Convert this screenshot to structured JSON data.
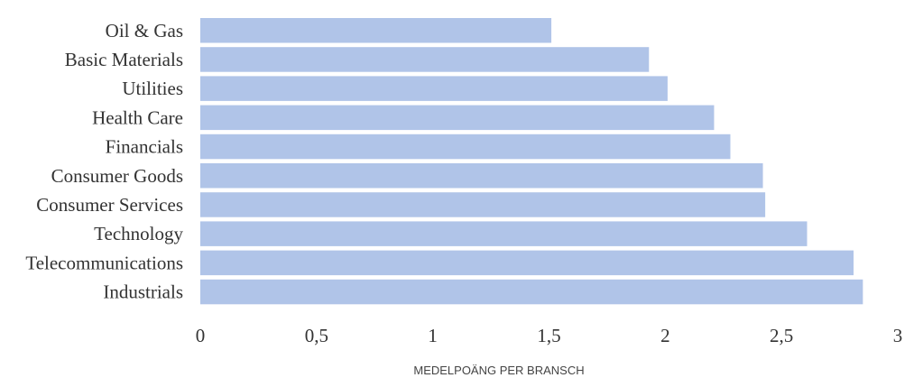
{
  "chart_data": {
    "type": "bar",
    "orientation": "horizontal",
    "categories": [
      "Oil & Gas",
      "Basic Materials",
      "Utilities",
      "Health Care",
      "Financials",
      "Consumer Goods",
      "Consumer Services",
      "Technology",
      "Telecommunications",
      "Industrials"
    ],
    "values": [
      1.51,
      1.93,
      2.01,
      2.21,
      2.28,
      2.42,
      2.43,
      2.61,
      2.81,
      2.85
    ],
    "xlabel": "MEDELPOÄNG PER BRANSCH",
    "xlim": [
      0,
      3
    ],
    "xticks": [
      "0",
      "0,5",
      "1",
      "1,5",
      "2",
      "2,5",
      "3"
    ],
    "xtick_values": [
      0,
      0.5,
      1,
      1.5,
      2,
      2.5,
      3
    ],
    "grid": false,
    "bar_color": "#b0c4e8"
  }
}
